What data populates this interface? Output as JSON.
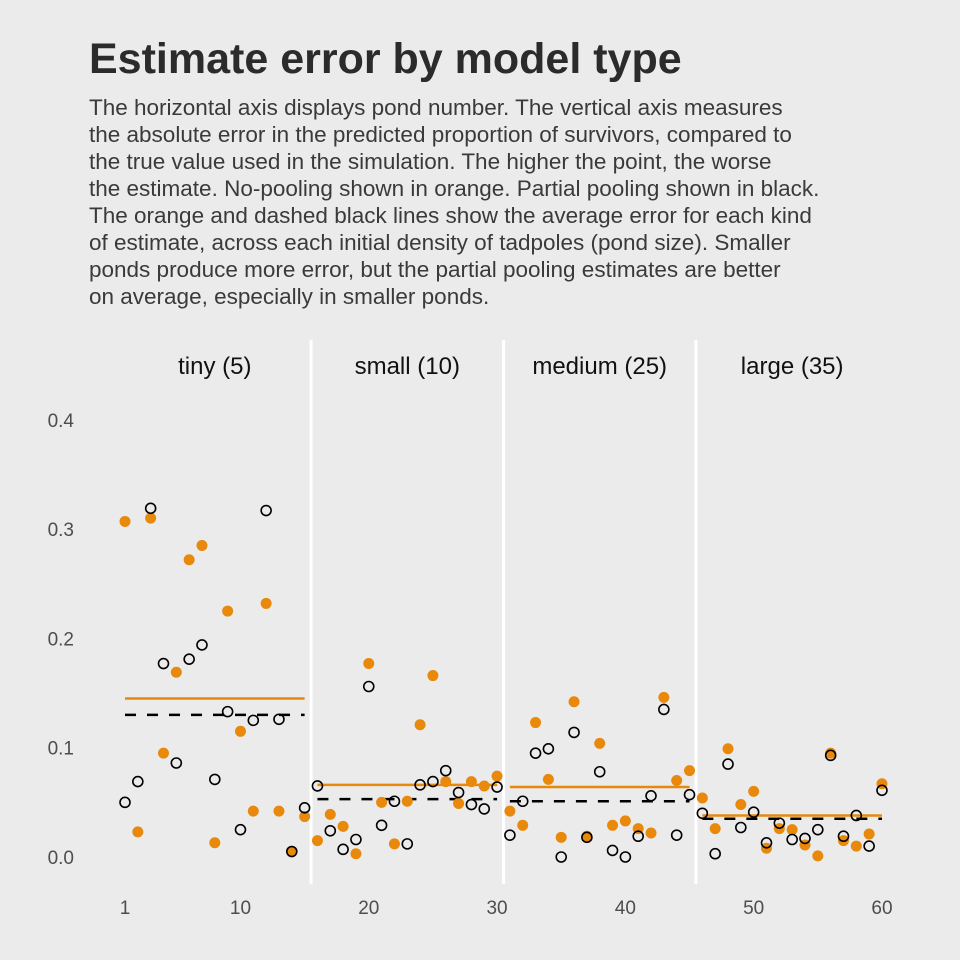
{
  "chart_data": {
    "type": "scatter",
    "title": "Estimate error by model type",
    "subtitle_lines": [
      "The horizontal axis displays pond number. The vertical axis measures",
      "the absolute error in the predicted proportion of survivors, compared to",
      "the true value used in the simulation. The higher the point, the worse",
      "the estimate. No-pooling shown in orange. Partial pooling shown in black.",
      "The orange and dashed black lines show the average error for each kind",
      "of estimate, across each initial density of tadpoles (pond size). Smaller",
      "ponds produce more error, but the partial pooling estimates are better",
      "on average, especially in smaller ponds."
    ],
    "xlabel": "",
    "ylabel": "",
    "xlim": [
      1,
      60
    ],
    "ylim": [
      0,
      0.4
    ],
    "x_ticks": [
      "1",
      "10",
      "20",
      "30",
      "40",
      "50",
      "60"
    ],
    "x_tick_values": [
      1,
      10,
      20,
      30,
      40,
      50,
      60
    ],
    "y_ticks": [
      "0.0",
      "0.1",
      "0.2",
      "0.3",
      "0.4"
    ],
    "y_tick_values": [
      0,
      0.1,
      0.2,
      0.3,
      0.4
    ],
    "colors": {
      "no_pooling": "#e8890c",
      "partial_pooling": "#000000",
      "background": "#ebebeb",
      "divider": "#ffffff"
    },
    "facets": [
      {
        "label": "tiny (5)",
        "ponds": [
          1,
          15
        ],
        "mean_no_pooling": 0.145,
        "mean_partial_pooling": 0.13
      },
      {
        "label": "small (10)",
        "ponds": [
          16,
          30
        ],
        "mean_no_pooling": 0.066,
        "mean_partial_pooling": 0.053
      },
      {
        "label": "medium (25)",
        "ponds": [
          31,
          45
        ],
        "mean_no_pooling": 0.064,
        "mean_partial_pooling": 0.051
      },
      {
        "label": "large (35)",
        "ponds": [
          46,
          60
        ],
        "mean_no_pooling": 0.038,
        "mean_partial_pooling": 0.035
      }
    ],
    "series": [
      {
        "name": "no pooling",
        "style": "filled-orange",
        "values": [
          0.307,
          0.023,
          0.31,
          0.095,
          0.169,
          0.272,
          0.285,
          0.013,
          0.225,
          0.115,
          0.042,
          0.232,
          0.042,
          0.005,
          0.037,
          0.015,
          0.039,
          0.028,
          0.003,
          0.177,
          0.05,
          0.012,
          0.051,
          0.121,
          0.166,
          0.069,
          0.049,
          0.069,
          0.065,
          0.074,
          0.042,
          0.029,
          0.123,
          0.071,
          0.018,
          0.142,
          0.019,
          0.104,
          0.029,
          0.033,
          0.026,
          0.022,
          0.146,
          0.07,
          0.079,
          0.054,
          0.026,
          0.099,
          0.048,
          0.06,
          0.008,
          0.026,
          0.025,
          0.011,
          0.001,
          0.095,
          0.015,
          0.01,
          0.021,
          0.067
        ]
      },
      {
        "name": "partial pooling",
        "style": "open-black",
        "values": [
          0.05,
          0.069,
          0.319,
          0.177,
          0.086,
          0.181,
          0.194,
          0.071,
          0.133,
          0.025,
          0.125,
          0.317,
          0.126,
          0.005,
          0.045,
          0.065,
          0.024,
          0.007,
          0.016,
          0.156,
          0.029,
          0.051,
          0.012,
          0.066,
          0.069,
          0.079,
          0.059,
          0.048,
          0.044,
          0.064,
          0.02,
          0.051,
          0.095,
          0.099,
          0.0,
          0.114,
          0.018,
          0.078,
          0.006,
          0.0,
          0.019,
          0.056,
          0.135,
          0.02,
          0.057,
          0.04,
          0.003,
          0.085,
          0.027,
          0.041,
          0.013,
          0.031,
          0.016,
          0.017,
          0.025,
          0.093,
          0.019,
          0.038,
          0.01,
          0.061
        ]
      }
    ]
  }
}
